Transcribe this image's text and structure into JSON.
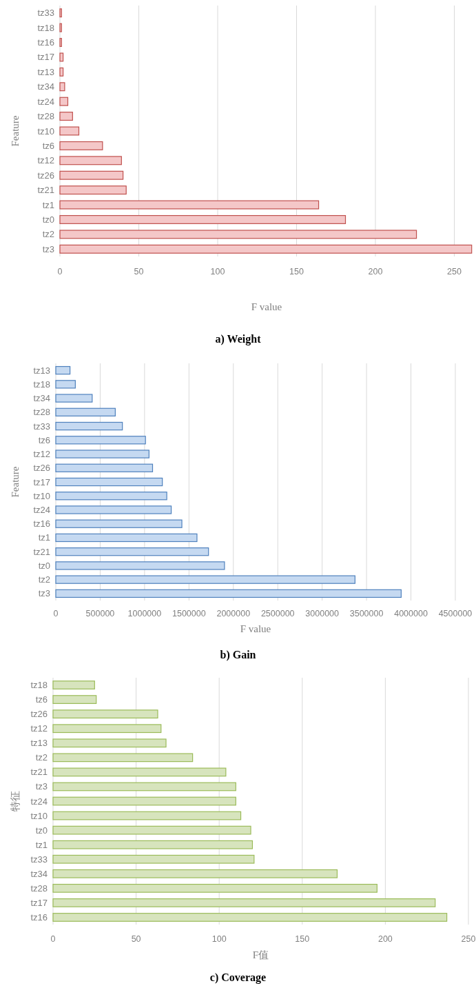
{
  "chart_data": [
    {
      "type": "bar",
      "orientation": "horizontal",
      "title": "a) Weight",
      "xlabel": "F value",
      "ylabel": "Feature",
      "categories": [
        "tz33",
        "tz18",
        "tz16",
        "tz17",
        "tz13",
        "tz34",
        "tz24",
        "tz28",
        "tz10",
        "tz6",
        "tz12",
        "tz26",
        "tz21",
        "tz1",
        "tz0",
        "tz2",
        "tz3"
      ],
      "values": [
        1,
        1,
        1,
        2,
        2,
        3,
        5,
        8,
        12,
        27,
        39,
        40,
        42,
        164,
        181,
        226,
        261
      ],
      "color": "#f4c7c8",
      "xlim": [
        0,
        262
      ],
      "xticks": [
        0,
        50,
        100,
        150,
        200,
        250
      ],
      "grid": "x"
    },
    {
      "type": "bar",
      "orientation": "horizontal",
      "title": "b) Gain",
      "xlabel": "F value",
      "ylabel": "Feature",
      "categories": [
        "tz13",
        "tz18",
        "tz34",
        "tz28",
        "tz33",
        "tz6",
        "tz12",
        "tz26",
        "tz17",
        "tz10",
        "tz24",
        "tz16",
        "tz1",
        "tz21",
        "tz0",
        "tz2",
        "tz3"
      ],
      "values": [
        160000,
        220000,
        410000,
        670000,
        750000,
        1010000,
        1050000,
        1090000,
        1200000,
        1250000,
        1300000,
        1420000,
        1590000,
        1720000,
        1900000,
        3370000,
        3890000
      ],
      "color": "#c5d9f1",
      "xlim": [
        0,
        4500000
      ],
      "xticks": [
        0,
        500000,
        1000000,
        1500000,
        2000000,
        2500000,
        3000000,
        3500000,
        4000000,
        4500000
      ],
      "grid": "x"
    },
    {
      "type": "bar",
      "orientation": "horizontal",
      "title": "c) Coverage",
      "xlabel": "F值",
      "ylabel": "特征",
      "categories": [
        "tz18",
        "tz6",
        "tz26",
        "tz12",
        "tz13",
        "tz2",
        "tz21",
        "tz3",
        "tz24",
        "tz10",
        "tz0",
        "tz1",
        "tz33",
        "tz34",
        "tz28",
        "tz17",
        "tz16"
      ],
      "values": [
        25,
        26,
        63,
        65,
        68,
        84,
        104,
        110,
        110,
        113,
        119,
        120,
        121,
        171,
        195,
        230,
        237
      ],
      "color": "#d7e4bd",
      "xlim": [
        0,
        250
      ],
      "xticks": [
        0,
        50,
        100,
        150,
        200,
        250
      ],
      "grid": "x"
    }
  ]
}
